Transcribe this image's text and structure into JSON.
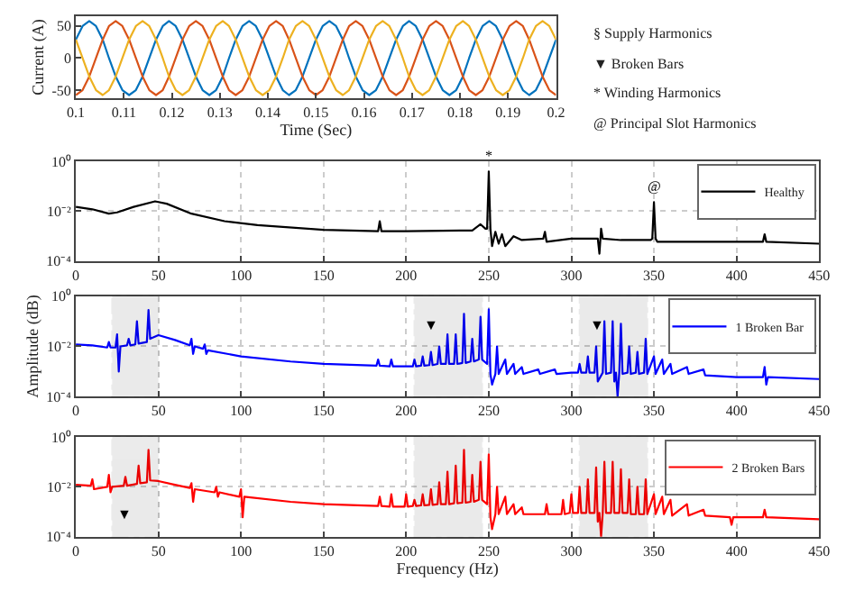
{
  "chart_data": [
    {
      "type": "line",
      "xlabel": "Time (Sec)",
      "ylabel": "Current (A)",
      "xlim": [
        0.1,
        0.2
      ],
      "xticks": [
        0.1,
        0.11,
        0.12,
        0.13,
        0.14,
        0.15,
        0.16,
        0.17,
        0.18,
        0.19,
        0.2
      ],
      "ylim": [
        -62,
        65
      ],
      "yticks": [
        -50,
        0,
        50
      ],
      "annotations": [
        "§ Supply Harmonics",
        "▼ Broken Bars",
        "* Winding Harmonics",
        "@ Principal Slot Harmonics"
      ],
      "x": [
        0.1,
        0.1014,
        0.1028,
        0.1042,
        0.1056,
        0.1069,
        0.1083,
        0.1097,
        0.1111,
        0.1125,
        0.1139,
        0.1153,
        0.1167,
        0.1181,
        0.1194,
        0.1208,
        0.1222,
        0.1236,
        0.125,
        0.1264,
        0.1278,
        0.1292,
        0.1306,
        0.1319,
        0.1333,
        0.1347,
        0.1361,
        0.1375,
        0.1389,
        0.1403,
        0.1417,
        0.1431,
        0.1444,
        0.1458,
        0.1472,
        0.1486,
        0.15,
        0.1514,
        0.1528,
        0.1542,
        0.1556,
        0.1569,
        0.1583,
        0.1597,
        0.1611,
        0.1625,
        0.1639,
        0.1653,
        0.1667,
        0.1681,
        0.1694,
        0.1708,
        0.1722,
        0.1736,
        0.175,
        0.1764,
        0.1778,
        0.1792,
        0.1806,
        0.1819,
        0.1833,
        0.1847,
        0.1861,
        0.1875,
        0.1889,
        0.1903,
        0.1917,
        0.1931,
        0.1944,
        0.1958,
        0.1972,
        0.1986,
        0.2
      ],
      "series": [
        {
          "color": "#0072bd",
          "values": [
            28.5,
            49.4,
            57,
            49.4,
            28.5,
            0,
            -28.5,
            -49.4,
            -57,
            -49.4,
            -28.5,
            0,
            28.5,
            49.4,
            57,
            49.4,
            28.5,
            0,
            -28.5,
            -49.4,
            -57,
            -49.4,
            -28.5,
            0,
            28.5,
            49.4,
            57,
            49.4,
            28.5,
            0,
            -28.5,
            -49.4,
            -57,
            -49.4,
            -28.5,
            0,
            28.5,
            49.4,
            57,
            49.4,
            28.5,
            0,
            -28.5,
            -49.4,
            -57,
            -49.4,
            -28.5,
            0,
            28.5,
            49.4,
            57,
            49.4,
            28.5,
            0,
            -28.5,
            -49.4,
            -57,
            -49.4,
            -28.5,
            0,
            28.5,
            49.4,
            57,
            49.4,
            28.5,
            0,
            -28.5,
            -49.4,
            -57,
            -49.4,
            -28.5,
            0,
            28.5
          ]
        },
        {
          "color": "#d95319",
          "values": [
            -57,
            -49.4,
            -28.5,
            0,
            28.5,
            49.4,
            57,
            49.4,
            28.5,
            0,
            -28.5,
            -49.4,
            -57,
            -49.4,
            -28.5,
            0,
            28.5,
            49.4,
            57,
            49.4,
            28.5,
            0,
            -28.5,
            -49.4,
            -57,
            -49.4,
            -28.5,
            0,
            28.5,
            49.4,
            57,
            49.4,
            28.5,
            0,
            -28.5,
            -49.4,
            -57,
            -49.4,
            -28.5,
            0,
            28.5,
            49.4,
            57,
            49.4,
            28.5,
            0,
            -28.5,
            -49.4,
            -57,
            -49.4,
            -28.5,
            0,
            28.5,
            49.4,
            57,
            49.4,
            28.5,
            0,
            -28.5,
            -49.4,
            -57,
            -49.4,
            -28.5,
            0,
            28.5,
            49.4,
            57,
            49.4,
            28.5,
            0,
            -28.5,
            -49.4,
            -57
          ]
        },
        {
          "color": "#edb120",
          "values": [
            28.5,
            0,
            -28.5,
            -49.4,
            -57,
            -49.4,
            -28.5,
            0,
            28.5,
            49.4,
            57,
            49.4,
            28.5,
            0,
            -28.5,
            -49.4,
            -57,
            -49.4,
            -28.5,
            0,
            28.5,
            49.4,
            57,
            49.4,
            28.5,
            0,
            -28.5,
            -49.4,
            -57,
            -49.4,
            -28.5,
            0,
            28.5,
            49.4,
            57,
            49.4,
            28.5,
            0,
            -28.5,
            -49.4,
            -57,
            -49.4,
            -28.5,
            0,
            28.5,
            49.4,
            57,
            49.4,
            28.5,
            0,
            -28.5,
            -49.4,
            -57,
            -49.4,
            -28.5,
            0,
            28.5,
            49.4,
            57,
            49.4,
            28.5,
            0,
            -28.5,
            -49.4,
            -57,
            -49.4,
            -28.5,
            0,
            28.5,
            49.4,
            57,
            49.4,
            28.5
          ]
        }
      ]
    },
    {
      "type": "line",
      "log": "y",
      "grid": true,
      "legend": "top right",
      "xlim": [
        0,
        450
      ],
      "xticks": [
        0,
        50,
        100,
        150,
        200,
        250,
        300,
        350,
        400,
        450
      ],
      "ylim": [
        0.0001,
        1
      ],
      "yticks": [
        {
          "value": 1,
          "label": "10⁰"
        },
        {
          "value": 0.01,
          "label": "10⁻²"
        },
        {
          "value": 0.0001,
          "label": "10⁻⁴"
        }
      ],
      "annotations": [
        {
          "text": "*",
          "x": 250,
          "y": 0.39
        },
        {
          "text": "@",
          "x": 350,
          "y": 0.023
        }
      ],
      "series": [
        {
          "name": "Healthy",
          "color": "#000000",
          "x": [
            0,
            10,
            20,
            25,
            35,
            48,
            55,
            70,
            90,
            110,
            150,
            183,
            184,
            185,
            200,
            240,
            245,
            248,
            249,
            250,
            251,
            252,
            254,
            256,
            258,
            260,
            265,
            270,
            283,
            284,
            285,
            300,
            316,
            317,
            318,
            319,
            330,
            348,
            349,
            350,
            351,
            352,
            400,
            416,
            417,
            418,
            450
          ],
          "values": [
            0.015,
            0.012,
            0.008,
            0.009,
            0.015,
            0.025,
            0.02,
            0.008,
            0.004,
            0.0028,
            0.0018,
            0.0016,
            0.004,
            0.0016,
            0.0016,
            0.0017,
            0.003,
            0.002,
            0.002,
            0.39,
            0.002,
            0.0004,
            0.0015,
            0.0005,
            0.0012,
            0.0004,
            0.001,
            0.0007,
            0.0008,
            0.0015,
            0.0006,
            0.0008,
            0.0008,
            0.0002,
            0.002,
            0.0008,
            0.0007,
            0.0007,
            0.0008,
            0.023,
            0.0008,
            0.0006,
            0.0006,
            0.0006,
            0.0012,
            0.0006,
            0.0005
          ]
        }
      ]
    },
    {
      "type": "line",
      "log": "y",
      "grid": true,
      "legend": "top right",
      "ylabel": "Amplitude (dB)",
      "xlim": [
        0,
        450
      ],
      "xticks": [
        0,
        50,
        100,
        150,
        200,
        250,
        300,
        350,
        400,
        450
      ],
      "ylim": [
        0.0001,
        1
      ],
      "yticks": [
        {
          "value": 1,
          "label": "10⁰"
        },
        {
          "value": 0.01,
          "label": "10⁻²"
        },
        {
          "value": 0.0001,
          "label": "10⁻⁴"
        }
      ],
      "annotations": [
        "▼",
        "▼"
      ],
      "bands": [
        {
          "axis": "x",
          "from": 22,
          "to": 50,
          "color": "#000000"
        },
        {
          "axis": "x",
          "from": 205,
          "to": 246,
          "color": "#000000"
        },
        {
          "axis": "x",
          "from": 305,
          "to": 346,
          "color": "#000000"
        }
      ],
      "series": [
        {
          "name": "1 Broken Bar",
          "color": "#0000ff",
          "x": [
            0,
            10,
            19,
            20,
            21,
            24,
            25,
            26,
            27,
            31,
            32,
            33,
            36,
            37,
            38,
            43,
            44,
            45,
            50,
            60,
            69,
            70,
            71,
            72,
            77,
            78,
            79,
            80,
            100,
            130,
            150,
            182,
            183,
            184,
            190,
            191,
            192,
            200,
            204,
            205,
            206,
            209,
            210,
            211,
            214,
            215,
            216,
            219,
            220,
            221,
            224,
            225,
            226,
            229,
            230,
            231,
            234,
            235,
            236,
            239,
            240,
            241,
            244,
            245,
            246,
            249,
            250,
            251,
            252,
            254,
            255,
            256,
            260,
            261,
            265,
            266,
            270,
            271,
            280,
            281,
            290,
            291,
            300,
            304,
            305,
            306,
            309,
            310,
            311,
            314,
            315,
            316,
            319,
            320,
            321,
            324,
            325,
            326,
            327,
            328,
            329,
            330,
            331,
            334,
            335,
            336,
            339,
            340,
            341,
            344,
            345,
            346,
            350,
            351,
            355,
            356,
            360,
            361,
            370,
            371,
            380,
            381,
            400,
            416,
            417,
            418,
            419,
            450
          ],
          "values": [
            0.012,
            0.011,
            0.009,
            0.015,
            0.009,
            0.009,
            0.03,
            0.001,
            0.01,
            0.011,
            0.02,
            0.011,
            0.012,
            0.1,
            0.013,
            0.015,
            0.28,
            0.02,
            0.028,
            0.018,
            0.011,
            0.02,
            0.005,
            0.01,
            0.008,
            0.012,
            0.005,
            0.007,
            0.004,
            0.0025,
            0.002,
            0.0017,
            0.003,
            0.0017,
            0.0016,
            0.003,
            0.0016,
            0.0016,
            0.0016,
            0.003,
            0.0016,
            0.0017,
            0.004,
            0.0017,
            0.0018,
            0.006,
            0.0018,
            0.002,
            0.01,
            0.002,
            0.002,
            0.03,
            0.002,
            0.002,
            0.03,
            0.002,
            0.0022,
            0.2,
            0.0022,
            0.0025,
            0.02,
            0.0025,
            0.003,
            0.15,
            0.003,
            0.002,
            0.3,
            0.0008,
            0.0003,
            0.0008,
            0.01,
            0.0008,
            0.003,
            0.0008,
            0.002,
            0.0008,
            0.0015,
            0.0008,
            0.0012,
            0.0008,
            0.0012,
            0.0008,
            0.0009,
            0.0009,
            0.002,
            0.0009,
            0.0009,
            0.004,
            0.0009,
            0.0009,
            0.01,
            0.0004,
            0.0009,
            0.1,
            0.0008,
            0.0009,
            0.1,
            0.0004,
            0.0009,
            0.0001,
            0.0009,
            0.08,
            0.0008,
            0.0009,
            0.01,
            0.0008,
            0.0009,
            0.006,
            0.0008,
            0.0009,
            0.02,
            0.0008,
            0.004,
            0.0008,
            0.003,
            0.0008,
            0.002,
            0.0008,
            0.0015,
            0.0008,
            0.0012,
            0.0007,
            0.0006,
            0.0006,
            0.0015,
            0.0003,
            0.0006,
            0.0005
          ]
        }
      ]
    },
    {
      "type": "line",
      "log": "y",
      "grid": true,
      "legend": "top right",
      "xlabel": "Frequency (Hz)",
      "xlim": [
        0,
        450
      ],
      "xticks": [
        0,
        50,
        100,
        150,
        200,
        250,
        300,
        350,
        400,
        450
      ],
      "ylim": [
        0.0001,
        1
      ],
      "yticks": [
        {
          "value": 1,
          "label": "10⁰"
        },
        {
          "value": 0.01,
          "label": "10⁻²"
        },
        {
          "value": 0.0001,
          "label": "10⁻⁴"
        }
      ],
      "annotations": [
        "▼"
      ],
      "bands": [
        {
          "axis": "x",
          "from": 22,
          "to": 50,
          "color": "#000000"
        },
        {
          "axis": "x",
          "from": 205,
          "to": 246,
          "color": "#000000"
        },
        {
          "axis": "x",
          "from": 305,
          "to": 346,
          "color": "#000000"
        }
      ],
      "series": [
        {
          "name": "2 Broken Bars",
          "color": "#ff0000",
          "x": [
            0,
            9,
            10,
            11,
            19,
            20,
            21,
            22,
            29,
            30,
            31,
            37,
            38,
            39,
            43,
            44,
            45,
            50,
            60,
            69,
            70,
            71,
            72,
            84,
            85,
            86,
            87,
            99,
            100,
            101,
            102,
            130,
            150,
            183,
            184,
            185,
            190,
            191,
            192,
            199,
            200,
            201,
            204,
            205,
            206,
            209,
            210,
            211,
            214,
            215,
            216,
            219,
            220,
            221,
            224,
            225,
            226,
            229,
            230,
            231,
            234,
            235,
            236,
            239,
            240,
            241,
            244,
            245,
            246,
            249,
            250,
            251,
            252,
            254,
            255,
            256,
            260,
            261,
            265,
            266,
            270,
            271,
            284,
            285,
            286,
            294,
            295,
            296,
            299,
            300,
            301,
            304,
            305,
            306,
            309,
            310,
            311,
            314,
            315,
            316,
            317,
            318,
            319,
            320,
            321,
            324,
            325,
            326,
            329,
            330,
            331,
            334,
            335,
            336,
            339,
            340,
            341,
            344,
            345,
            346,
            350,
            351,
            355,
            356,
            360,
            361,
            370,
            371,
            380,
            381,
            396,
            397,
            398,
            416,
            417,
            418,
            450
          ],
          "values": [
            0.012,
            0.011,
            0.02,
            0.008,
            0.01,
            0.03,
            0.006,
            0.01,
            0.011,
            0.025,
            0.011,
            0.013,
            0.07,
            0.014,
            0.015,
            0.3,
            0.018,
            0.017,
            0.012,
            0.009,
            0.014,
            0.0025,
            0.008,
            0.006,
            0.01,
            0.004,
            0.006,
            0.004,
            0.008,
            0.0006,
            0.004,
            0.0025,
            0.002,
            0.0017,
            0.004,
            0.0017,
            0.0016,
            0.005,
            0.0016,
            0.0016,
            0.005,
            0.0016,
            0.0017,
            0.003,
            0.0017,
            0.0018,
            0.005,
            0.0018,
            0.0019,
            0.008,
            0.0019,
            0.002,
            0.015,
            0.002,
            0.002,
            0.04,
            0.002,
            0.0022,
            0.07,
            0.0022,
            0.0023,
            0.3,
            0.0023,
            0.0025,
            0.03,
            0.0025,
            0.003,
            0.1,
            0.003,
            0.002,
            0.2,
            0.0006,
            0.0002,
            0.0008,
            0.01,
            0.0008,
            0.004,
            0.0008,
            0.002,
            0.0008,
            0.0015,
            0.0008,
            0.0008,
            0.002,
            0.0008,
            0.0008,
            0.003,
            0.0008,
            0.0009,
            0.005,
            0.0009,
            0.0009,
            0.01,
            0.0009,
            0.0009,
            0.02,
            0.0009,
            0.0009,
            0.06,
            0.0004,
            0.0009,
            0.0001,
            0.0009,
            0.1,
            0.0009,
            0.0009,
            0.1,
            0.0009,
            0.0009,
            0.05,
            0.0009,
            0.0009,
            0.02,
            0.0008,
            0.0008,
            0.01,
            0.0008,
            0.0008,
            0.02,
            0.0008,
            0.005,
            0.0008,
            0.004,
            0.0008,
            0.003,
            0.0007,
            0.002,
            0.0007,
            0.0012,
            0.0007,
            0.0006,
            0.0003,
            0.0006,
            0.0006,
            0.0012,
            0.0006,
            0.0005
          ]
        }
      ]
    }
  ]
}
